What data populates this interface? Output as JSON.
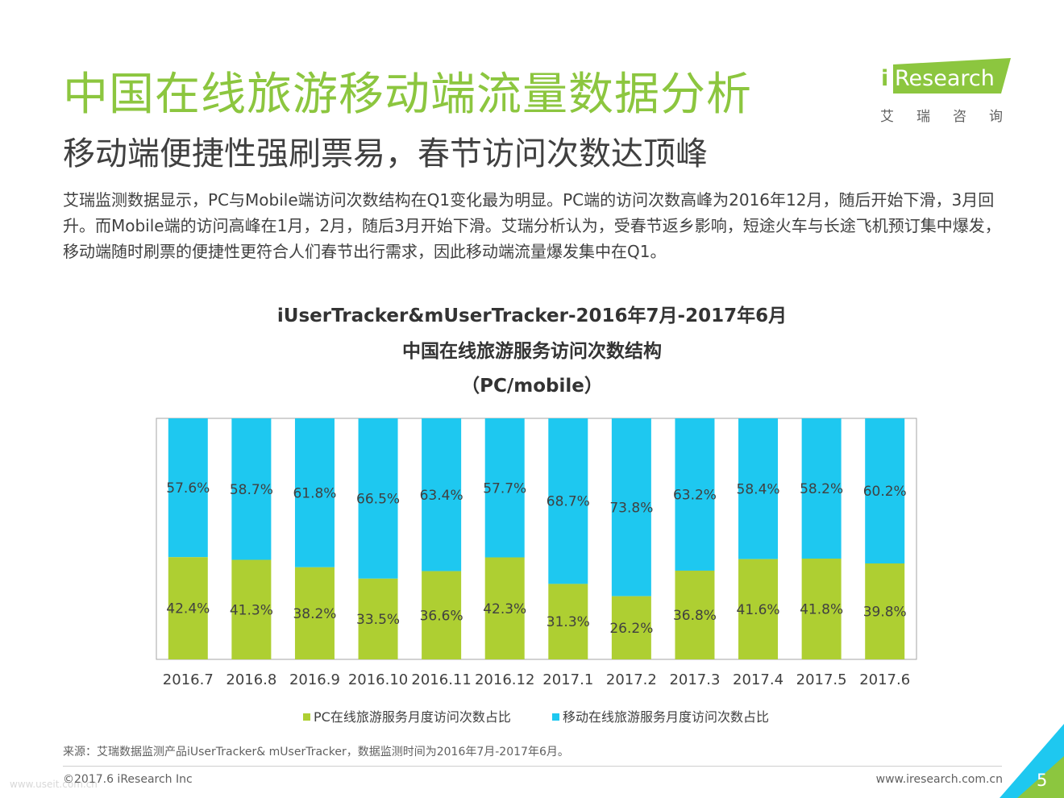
{
  "header": {
    "title": "中国在线旅游移动端流量数据分析",
    "subtitle": "移动端便捷性强刷票易，春节访问次数达顶峰",
    "description": "艾瑞监测数据显示，PC与Mobile端访问次数结构在Q1变化最为明显。PC端的访问次数高峰为2016年12月，随后开始下滑，3月回升。而Mobile端的访问高峰在1月，2月，随后3月开始下滑。艾瑞分析认为，受春节返乡影响，短途火车与长途飞机预订集中爆发，移动端随时刷票的便捷性更符合人们春节出行需求，因此移动端流量爆发集中在Q1。"
  },
  "logo": {
    "brand": "iResearch",
    "brand_i": "i",
    "brand_rest": "Research",
    "sub": "艾瑞咨询"
  },
  "chart_data": {
    "type": "bar",
    "stacked": true,
    "normalized": true,
    "title_lines": [
      "iUserTracker&mUserTracker-2016年7月-2017年6月",
      "中国在线旅游服务访问次数结构",
      "（PC/mobile）"
    ],
    "categories": [
      "2016.7",
      "2016.8",
      "2016.9",
      "2016.10",
      "2016.11",
      "2016.12",
      "2017.1",
      "2017.2",
      "2017.3",
      "2017.4",
      "2017.5",
      "2017.6"
    ],
    "series": [
      {
        "name": "PC在线旅游服务月度访问次数占比",
        "color": "#aecf32",
        "values": [
          42.4,
          41.3,
          38.2,
          33.5,
          36.6,
          42.3,
          31.3,
          26.2,
          36.8,
          41.6,
          41.8,
          39.8
        ],
        "labels": [
          "42.4%",
          "41.3%",
          "38.2%",
          "33.5%",
          "36.6%",
          "42.3%",
          "31.3%",
          "26.2%",
          "36.8%",
          "41.6%",
          "41.8%",
          "39.8%"
        ]
      },
      {
        "name": "移动在线旅游服务月度访问次数占比",
        "color": "#1ec8f0",
        "values": [
          57.6,
          58.7,
          61.8,
          66.5,
          63.4,
          57.7,
          68.7,
          73.8,
          63.2,
          58.4,
          58.2,
          60.2
        ],
        "labels": [
          "57.6%",
          "58.7%",
          "61.8%",
          "66.5%",
          "63.4%",
          "57.7%",
          "68.7%",
          "73.8%",
          "63.2%",
          "58.4%",
          "58.2%",
          "60.2%"
        ]
      }
    ],
    "ylim": [
      0,
      100
    ],
    "grid": false,
    "legend": "bottom"
  },
  "footer": {
    "source": "来源：艾瑞数据监测产品iUserTracker& mUserTracker，数据监测时间为2016年7月-2017年6月。",
    "copyright": "©2017.6 iResearch Inc",
    "website": "www.iresearch.com.cn",
    "page": "5",
    "watermark": "www.useit.com.cn"
  },
  "colors": {
    "accent_green": "#8cc63f",
    "pc_bar": "#aecf32",
    "mobile_bar": "#1ec8f0",
    "corner_dark": "#1e9fd8"
  }
}
